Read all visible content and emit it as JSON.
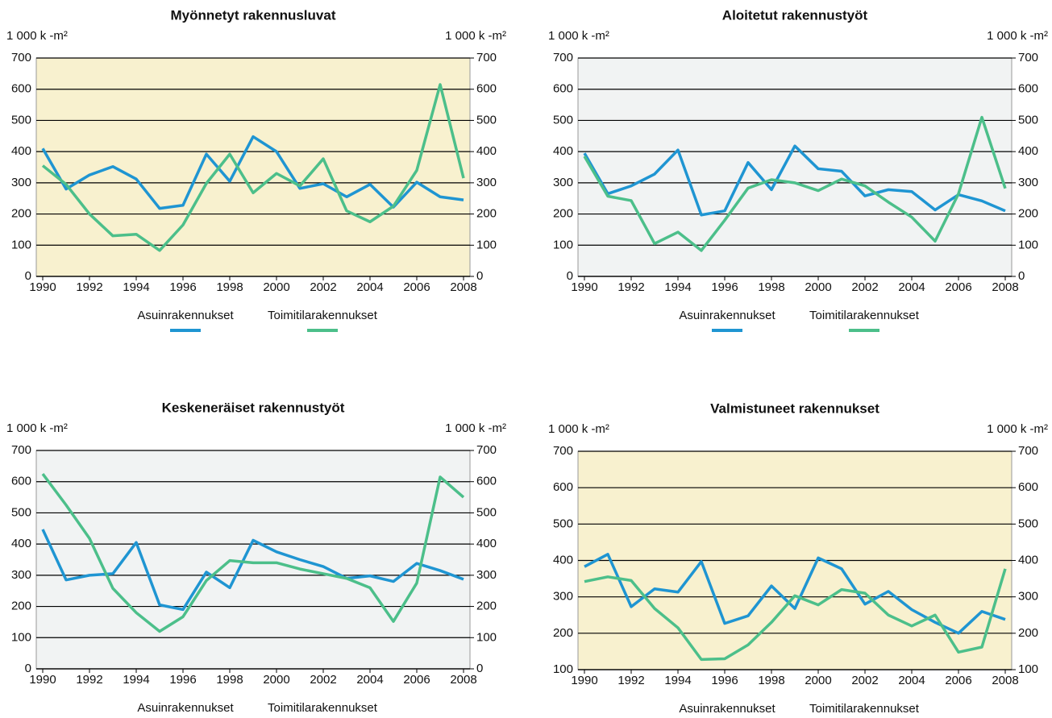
{
  "chart_data": [
    {
      "type": "line",
      "title": "Myönnetyt rakennusluvat",
      "y_label": "1 000 k -m²",
      "y2_label": "1 000 k -m²",
      "background": "#f8f1cf",
      "x": [
        1990,
        1991,
        1992,
        1993,
        1994,
        1995,
        1996,
        1997,
        1998,
        1999,
        2000,
        2001,
        2002,
        2003,
        2004,
        2005,
        2006,
        2007,
        2008
      ],
      "xlim": [
        1990,
        2008
      ],
      "xticks": [
        1990,
        1992,
        1994,
        1996,
        1998,
        2000,
        2002,
        2004,
        2006,
        2008
      ],
      "ylim": [
        0,
        700
      ],
      "yticks": [
        0,
        100,
        200,
        300,
        400,
        500,
        600,
        700
      ],
      "y2lim": [
        0,
        700
      ],
      "y2ticks": [
        0,
        100,
        200,
        300,
        400,
        500,
        600,
        700
      ],
      "grid": true,
      "legend_swatches": true,
      "series": [
        {
          "name": "Asuinrakennukset",
          "color": "#1f95d2",
          "values": [
            410,
            280,
            325,
            352,
            312,
            218,
            228,
            392,
            305,
            448,
            400,
            282,
            297,
            255,
            295,
            222,
            302,
            255,
            245
          ]
        },
        {
          "name": "Toimitilarakennukset",
          "color": "#4cbf8a",
          "values": [
            355,
            295,
            200,
            130,
            135,
            83,
            165,
            298,
            392,
            268,
            330,
            290,
            377,
            210,
            175,
            225,
            340,
            615,
            315
          ]
        }
      ]
    },
    {
      "type": "line",
      "title": "Aloitetut rakennustyöt",
      "y_label": "1 000 k -m²",
      "y2_label": "1 000 k -m²",
      "background": "#f1f3f3",
      "x": [
        1990,
        1991,
        1992,
        1993,
        1994,
        1995,
        1996,
        1997,
        1998,
        1999,
        2000,
        2001,
        2002,
        2003,
        2004,
        2005,
        2006,
        2007,
        2008
      ],
      "xlim": [
        1990,
        2008
      ],
      "xticks": [
        1990,
        1992,
        1994,
        1996,
        1998,
        2000,
        2002,
        2004,
        2006,
        2008
      ],
      "ylim": [
        0,
        700
      ],
      "yticks": [
        0,
        100,
        200,
        300,
        400,
        500,
        600,
        700
      ],
      "y2lim": [
        0,
        700
      ],
      "y2ticks": [
        0,
        100,
        200,
        300,
        400,
        500,
        600,
        700
      ],
      "grid": true,
      "legend_swatches": true,
      "series": [
        {
          "name": "Asuinrakennukset",
          "color": "#1f95d2",
          "values": [
            395,
            265,
            290,
            328,
            405,
            197,
            210,
            365,
            278,
            418,
            345,
            337,
            258,
            278,
            272,
            213,
            262,
            242,
            210
          ]
        },
        {
          "name": "Toimitilarakennukset",
          "color": "#4cbf8a",
          "values": [
            385,
            257,
            243,
            105,
            142,
            83,
            180,
            283,
            310,
            300,
            275,
            312,
            290,
            238,
            190,
            113,
            265,
            510,
            282
          ]
        }
      ]
    },
    {
      "type": "line",
      "title": "Keskeneräiset rakennustyöt",
      "y_label": "1 000 k -m²",
      "y2_label": "1 000 k -m²",
      "background": "#f1f3f3",
      "x": [
        1990,
        1991,
        1992,
        1993,
        1994,
        1995,
        1996,
        1997,
        1998,
        1999,
        2000,
        2001,
        2002,
        2003,
        2004,
        2005,
        2006,
        2007,
        2008
      ],
      "xlim": [
        1990,
        2008
      ],
      "xticks": [
        1990,
        1992,
        1994,
        1996,
        1998,
        2000,
        2002,
        2004,
        2006,
        2008
      ],
      "ylim": [
        0,
        700
      ],
      "yticks": [
        0,
        100,
        200,
        300,
        400,
        500,
        600,
        700
      ],
      "y2lim": [
        0,
        700
      ],
      "y2ticks": [
        0,
        100,
        200,
        300,
        400,
        500,
        600,
        700
      ],
      "grid": true,
      "legend_swatches": false,
      "series": [
        {
          "name": "Asuinrakennukset",
          "color": "#1f95d2",
          "values": [
            447,
            285,
            300,
            305,
            405,
            205,
            190,
            310,
            260,
            412,
            375,
            350,
            328,
            290,
            298,
            280,
            338,
            315,
            287
          ]
        },
        {
          "name": "Toimitilarakennukset",
          "color": "#4cbf8a",
          "values": [
            625,
            525,
            418,
            258,
            180,
            120,
            167,
            283,
            347,
            340,
            340,
            320,
            305,
            290,
            260,
            152,
            275,
            615,
            550
          ]
        }
      ]
    },
    {
      "type": "line",
      "title": "Valmistuneet rakennukset",
      "y_label": "1 000 k -m²",
      "y2_label": "1 000 k -m²",
      "background": "#f8f1cf",
      "x": [
        1990,
        1991,
        1992,
        1993,
        1994,
        1995,
        1996,
        1997,
        1998,
        1999,
        2000,
        2001,
        2002,
        2003,
        2004,
        2005,
        2006,
        2007,
        2008
      ],
      "xlim": [
        1990,
        2008
      ],
      "xticks": [
        1990,
        1992,
        1994,
        1996,
        1998,
        2000,
        2002,
        2004,
        2006,
        2008
      ],
      "ylim": [
        100,
        700
      ],
      "yticks": [
        100,
        200,
        300,
        400,
        500,
        600,
        700
      ],
      "y2lim": [
        100,
        700
      ],
      "y2ticks": [
        100,
        200,
        300,
        400,
        500,
        600,
        700
      ],
      "grid": true,
      "legend_swatches": false,
      "series": [
        {
          "name": "Asuinrakennukset",
          "color": "#1f95d2",
          "values": [
            383,
            417,
            273,
            322,
            313,
            397,
            227,
            248,
            330,
            268,
            407,
            377,
            280,
            315,
            265,
            230,
            200,
            260,
            238
          ]
        },
        {
          "name": "Toimitilarakennukset",
          "color": "#4cbf8a",
          "values": [
            342,
            355,
            345,
            268,
            215,
            128,
            130,
            168,
            230,
            303,
            278,
            320,
            310,
            250,
            220,
            250,
            148,
            162,
            377
          ]
        }
      ]
    }
  ]
}
